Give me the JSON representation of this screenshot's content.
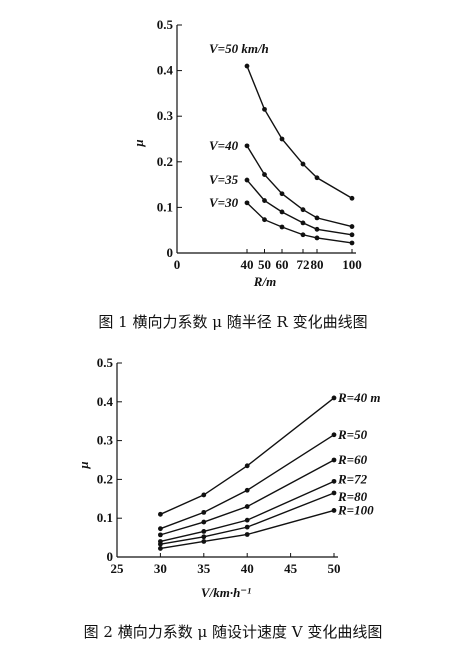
{
  "chart_data": [
    {
      "type": "line",
      "caption": "图 1   横向力系数 μ 随半径 R 变化曲线图",
      "xlabel": "R/m",
      "ylabel": "μ",
      "xlim": [
        0,
        100
      ],
      "ylim": [
        0,
        0.5
      ],
      "xticks": [
        {
          "value": 0,
          "label": "0"
        },
        {
          "value": 40,
          "label": "40"
        },
        {
          "value": 50,
          "label": "50"
        },
        {
          "value": 60,
          "label": "60"
        },
        {
          "value": 72,
          "label": "72"
        },
        {
          "value": 80,
          "label": "80"
        },
        {
          "value": 100,
          "label": "100"
        }
      ],
      "yticks": [
        {
          "value": 0,
          "label": "0"
        },
        {
          "value": 0.1,
          "label": "0.1"
        },
        {
          "value": 0.2,
          "label": "0.2"
        },
        {
          "value": 0.3,
          "label": "0.3"
        },
        {
          "value": 0.4,
          "label": "0.4"
        },
        {
          "value": 0.5,
          "label": "0.5"
        }
      ],
      "x": [
        40,
        50,
        60,
        72,
        80,
        100
      ],
      "series": [
        {
          "name": "V=50 km/h",
          "values": [
            0.41,
            0.315,
            0.25,
            0.195,
            0.165,
            0.12
          ]
        },
        {
          "name": "V=40",
          "values": [
            0.235,
            0.172,
            0.13,
            0.095,
            0.077,
            0.058
          ]
        },
        {
          "name": "V=35",
          "values": [
            0.16,
            0.115,
            0.09,
            0.066,
            0.052,
            0.04
          ]
        },
        {
          "name": "V=30",
          "values": [
            0.11,
            0.073,
            0.057,
            0.04,
            0.033,
            0.022
          ]
        }
      ],
      "grid": false
    },
    {
      "type": "line",
      "caption": "图 2   横向力系数 μ 随设计速度 V 变化曲线图",
      "xlabel": "V/km·h⁻¹",
      "ylabel": "μ",
      "xlim": [
        25,
        50
      ],
      "ylim": [
        0,
        0.5
      ],
      "xticks": [
        {
          "value": 25,
          "label": "25"
        },
        {
          "value": 30,
          "label": "30"
        },
        {
          "value": 35,
          "label": "35"
        },
        {
          "value": 40,
          "label": "40"
        },
        {
          "value": 45,
          "label": "45"
        },
        {
          "value": 50,
          "label": "50"
        }
      ],
      "yticks": [
        {
          "value": 0,
          "label": "0"
        },
        {
          "value": 0.1,
          "label": "0.1"
        },
        {
          "value": 0.2,
          "label": "0.2"
        },
        {
          "value": 0.3,
          "label": "0.3"
        },
        {
          "value": 0.4,
          "label": "0.4"
        },
        {
          "value": 0.5,
          "label": "0.5"
        }
      ],
      "x": [
        30,
        35,
        40,
        50
      ],
      "series": [
        {
          "name": "R=40 m",
          "values": [
            0.11,
            0.16,
            0.235,
            0.41
          ]
        },
        {
          "name": "R=50",
          "values": [
            0.073,
            0.115,
            0.172,
            0.315
          ]
        },
        {
          "name": "R=60",
          "values": [
            0.057,
            0.09,
            0.13,
            0.25
          ]
        },
        {
          "name": "R=72",
          "values": [
            0.04,
            0.066,
            0.095,
            0.195
          ]
        },
        {
          "name": "R=80",
          "values": [
            0.033,
            0.052,
            0.077,
            0.165
          ]
        },
        {
          "name": "R=100",
          "values": [
            0.022,
            0.04,
            0.058,
            0.12
          ]
        }
      ],
      "grid": false
    }
  ]
}
